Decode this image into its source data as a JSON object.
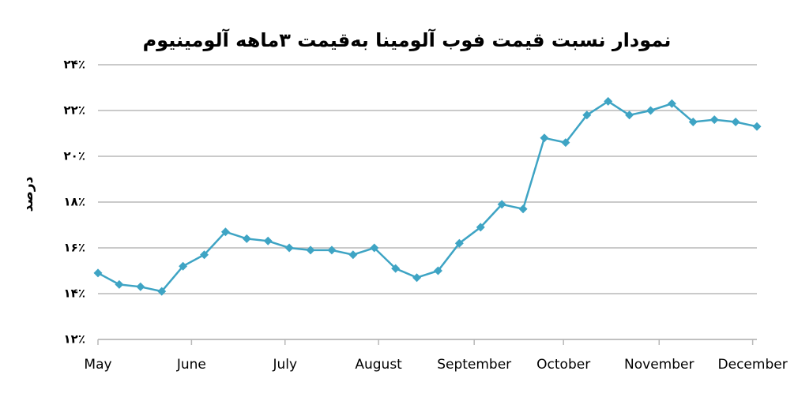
{
  "chart_data": {
    "type": "line",
    "title": "نمودار نسبت قیمت فوب آلومینا به‌قیمت ۳ماهه آلومینیوم",
    "y_label": "درصد",
    "x": [
      0,
      1,
      2,
      3,
      4,
      5,
      6,
      7,
      8,
      9,
      10,
      11,
      12,
      13,
      14,
      15,
      16,
      17,
      18,
      19,
      20,
      21,
      22,
      23,
      24,
      25,
      26,
      27,
      28,
      29,
      30,
      31
    ],
    "xlim": [
      0,
      31
    ],
    "xticks": [
      {
        "value": 0,
        "label": "May"
      },
      {
        "value": 4.4,
        "label": "June"
      },
      {
        "value": 8.8,
        "label": "July"
      },
      {
        "value": 13.2,
        "label": "August"
      },
      {
        "value": 17.7,
        "label": "September"
      },
      {
        "value": 21.9,
        "label": "October"
      },
      {
        "value": 26.4,
        "label": "November"
      },
      {
        "value": 30.8,
        "label": "December"
      }
    ],
    "ylim": [
      12,
      24
    ],
    "yticks": [
      {
        "value": 12,
        "label": "۱۲٪"
      },
      {
        "value": 14,
        "label": "۱۴٪"
      },
      {
        "value": 16,
        "label": "۱۶٪"
      },
      {
        "value": 18,
        "label": "۱۸٪"
      },
      {
        "value": 20,
        "label": "۲۰٪"
      },
      {
        "value": 22,
        "label": "۲۲٪"
      },
      {
        "value": 24,
        "label": "۲۴٪"
      }
    ],
    "grid": true,
    "color": "#3ea4c4",
    "values": [
      14.9,
      14.4,
      14.3,
      14.1,
      15.2,
      15.7,
      16.7,
      16.4,
      16.3,
      16.0,
      15.9,
      15.9,
      15.7,
      16.0,
      15.1,
      14.7,
      15.0,
      16.2,
      16.9,
      17.9,
      17.7,
      20.8,
      20.6,
      21.8,
      22.4,
      21.8,
      22.0,
      22.3,
      21.5,
      21.6,
      21.5,
      21.3
    ]
  }
}
